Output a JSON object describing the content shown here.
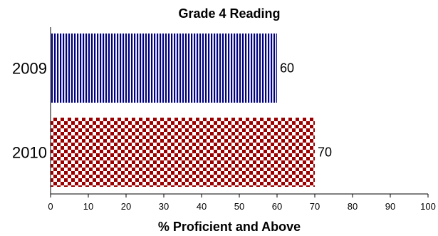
{
  "chart_data": {
    "type": "bar",
    "orientation": "horizontal",
    "title": "Grade 4 Reading",
    "xlabel": "% Proficient and Above",
    "ylabel": "",
    "categories": [
      "2009",
      "2010"
    ],
    "values": [
      60,
      70
    ],
    "data_labels": [
      "60",
      "70"
    ],
    "xlim": [
      0,
      100
    ],
    "x_ticks": [
      "0",
      "10",
      "20",
      "30",
      "40",
      "50",
      "60",
      "70",
      "80",
      "90",
      "100"
    ],
    "grid": false,
    "legend": "none",
    "bar_styles": [
      {
        "color": "#000080",
        "pattern": "vertical-stripes"
      },
      {
        "color": "#9b0000",
        "pattern": "checkerboard"
      }
    ]
  }
}
